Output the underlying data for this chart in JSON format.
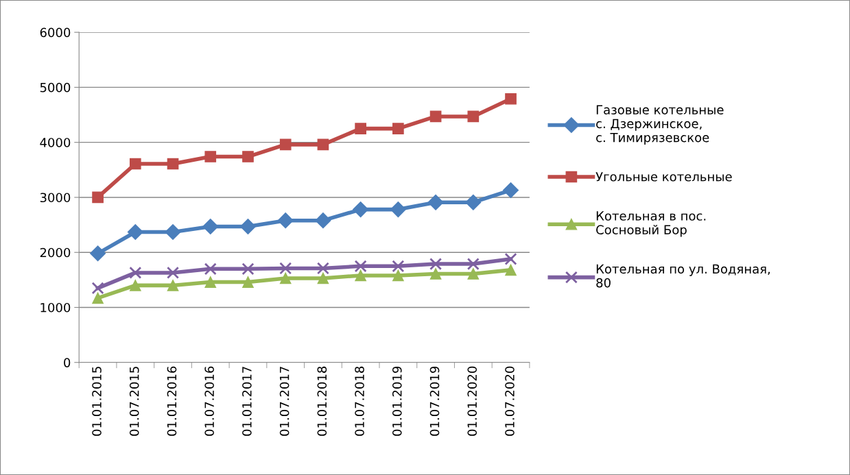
{
  "chart_data": {
    "type": "line",
    "categories": [
      "01.01.2015",
      "01.07.2015",
      "01.01.2016",
      "01.07.2016",
      "01.01.2017",
      "01.07.2017",
      "01.01.2018",
      "01.07.2018",
      "01.01.2019",
      "01.07.2019",
      "01.01.2020",
      "01.07.2020"
    ],
    "series": [
      {
        "name": "Газовые котельные\nс. Дзержинское,\nс. Тимирязевское",
        "color": "#4a7ebb",
        "marker": "diamond",
        "values": [
          1980,
          2370,
          2370,
          2470,
          2470,
          2580,
          2580,
          2780,
          2780,
          2910,
          2910,
          3130
        ]
      },
      {
        "name": "Угольные котельные",
        "color": "#be4b48",
        "marker": "square",
        "values": [
          3000,
          3610,
          3610,
          3740,
          3740,
          3960,
          3960,
          4250,
          4250,
          4470,
          4470,
          4790
        ]
      },
      {
        "name": "Котельная в пос.\nСосновый Бор",
        "color": "#98b954",
        "marker": "triangle",
        "values": [
          1170,
          1400,
          1400,
          1460,
          1460,
          1530,
          1530,
          1580,
          1580,
          1610,
          1610,
          1680
        ]
      },
      {
        "name": "Котельная по ул. Водяная,\n80",
        "color": "#7d60a0",
        "marker": "cross",
        "values": [
          1350,
          1630,
          1630,
          1700,
          1700,
          1710,
          1710,
          1750,
          1750,
          1790,
          1790,
          1880
        ]
      }
    ],
    "ylim": [
      0,
      6000
    ],
    "yticks": [
      0,
      1000,
      2000,
      3000,
      4000,
      5000,
      6000
    ],
    "grid": "y",
    "legend": "right",
    "line_style": "solid"
  }
}
